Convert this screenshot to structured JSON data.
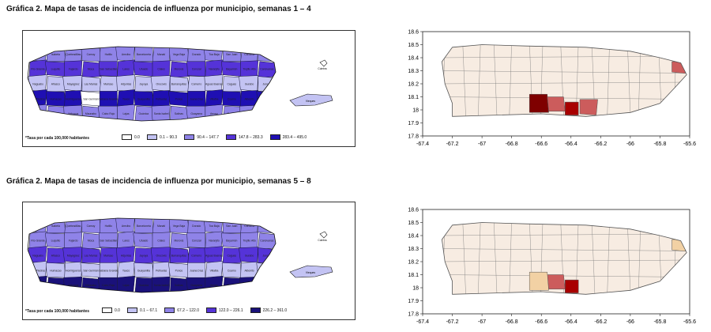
{
  "panels": [
    {
      "caption": "Gráfica 2. Mapa de tasas de incidencia de influenza por municipio, semanas 1 – 4",
      "note": "*Tasa por cada 100,000 habitantes",
      "legend": [
        {
          "label": "0.0",
          "color": "#ffffff"
        },
        {
          "label": "0.1 – 90.3",
          "color": "#c3c3f3"
        },
        {
          "label": "90.4 – 147.7",
          "color": "#8f83e8"
        },
        {
          "label": "147.8 – 283.3",
          "color": "#5533d8"
        },
        {
          "label": "283.4 – 495.0",
          "color": "#1f0fb3"
        }
      ],
      "towns_left": [
        "Aguadilla",
        "Isabela",
        "Quebradillas",
        "Camuy",
        "Hatillo",
        "Arecibo",
        "Barceloneta",
        "Manatí",
        "Vega Baja",
        "Dorado",
        "Toa Baja",
        "San Juan",
        "Carolina",
        "Loíza",
        "Río Grande",
        "Luquillo",
        "Fajardo",
        "Moca",
        "San Sebastián",
        "Lares",
        "Utuado",
        "Ciales",
        "Morovis",
        "Corozal",
        "Naranjito",
        "Bayamón",
        "Trujillo Alto",
        "Canóvanas",
        "Naguabo",
        "Añasco",
        "Mayagüez",
        "Las Marías",
        "Maricao",
        "Adjuntas",
        "Jayuya",
        "Orocovis",
        "Barranquitas",
        "Comerío",
        "Aguas Buenas",
        "Caguas",
        "Gurabo",
        "Juncos",
        "Las Piedras",
        "Humacao",
        "Hormigueros",
        "San Germán",
        "Sabana Grande",
        "Yauco",
        "Guayanilla",
        "Peñuelas",
        "Ponce",
        "Juana Díaz",
        "Villalba",
        "Coamo",
        "Aibonito",
        "Cidra",
        "Cayey",
        "San Lorenzo",
        "Yabucoa",
        "Maunabo",
        "Cabo Rojo",
        "Lajas",
        "Guánica",
        "Santa Isabel",
        "Salinas",
        "Guayama",
        "Arroyo",
        "Patillas",
        "Culebra",
        "Vieques"
      ],
      "towns_right": [
        {
          "name": "Ponce",
          "color": "#7f0000"
        },
        {
          "name": "Juana Díaz",
          "color": "#cc5c5c"
        },
        {
          "name": "Santa Isabel",
          "color": "#a80000"
        },
        {
          "name": "Salinas",
          "color": "#cc5c5c"
        },
        {
          "name": "Fajardo",
          "color": "#cc5c5c"
        }
      ],
      "chart_data": {
        "type": "map",
        "x_ticks": [
          "-67.4",
          "-67.2",
          "-67",
          "-66.8",
          "-66.6",
          "-66.4",
          "-66.2",
          "-66",
          "-65.8",
          "-65.6"
        ],
        "y_ticks": [
          "18.6",
          "18.5",
          "18.4",
          "18.3",
          "18.2",
          "18.1",
          "18",
          "17.9",
          "17.8"
        ],
        "xlim": [
          -67.4,
          -65.6
        ],
        "ylim": [
          17.8,
          18.6
        ]
      }
    },
    {
      "caption": "Gráfica 2. Mapa de tasas de incidencia de influenza por municipio, semanas 5 – 8",
      "note": "*Tasa por cada 100,000 habitantes",
      "legend": [
        {
          "label": "0.0",
          "color": "#ffffff"
        },
        {
          "label": "0.1 – 67.1",
          "color": "#c3c3f3"
        },
        {
          "label": "67.2 – 122.0",
          "color": "#8f83e8"
        },
        {
          "label": "122.0 – 226.1",
          "color": "#5533d8"
        },
        {
          "label": "226.2 – 361.0",
          "color": "#1a117a"
        }
      ],
      "towns_left": [
        "Aguadilla",
        "Isabela",
        "Quebradillas",
        "Camuy",
        "Hatillo",
        "Arecibo",
        "Barceloneta",
        "Manatí",
        "Vega Baja",
        "Dorado",
        "Toa Baja",
        "San Juan",
        "Carolina",
        "Loíza",
        "Río Grande",
        "Luquillo",
        "Fajardo",
        "Moca",
        "San Sebastián",
        "Lares",
        "Utuado",
        "Ciales",
        "Morovis",
        "Corozal",
        "Naranjito",
        "Bayamón",
        "Trujillo Alto",
        "Canóvanas",
        "Naguabo",
        "Añasco",
        "Mayagüez",
        "Las Marías",
        "Maricao",
        "Adjuntas",
        "Jayuya",
        "Orocovis",
        "Barranquitas",
        "Comerío",
        "Aguas Buenas",
        "Caguas",
        "Gurabo",
        "Juncos",
        "Las Piedras",
        "Humacao",
        "Hormigueros",
        "San Germán",
        "Sabana Grande",
        "Yauco",
        "Guayanilla",
        "Peñuelas",
        "Ponce",
        "Juana Díaz",
        "Villalba",
        "Coamo",
        "Aibonito",
        "Cidra",
        "Cayey",
        "San Lorenzo",
        "Yabucoa",
        "Maunabo",
        "Cabo Rojo",
        "Lajas",
        "Guánica",
        "Santa Isabel",
        "Salinas",
        "Guayama",
        "Arroyo",
        "Patillas",
        "Culebra",
        "Vieques"
      ],
      "towns_right": [
        {
          "name": "Juana Díaz",
          "color": "#cc5c5c"
        },
        {
          "name": "Santa Isabel",
          "color": "#a80000"
        },
        {
          "name": "Ponce",
          "color": "#f2d1a4"
        },
        {
          "name": "Fajardo",
          "color": "#f2d1a4"
        }
      ],
      "chart_data": {
        "type": "map",
        "x_ticks": [
          "-67.4",
          "-67.2",
          "-67",
          "-66.8",
          "-66.6",
          "-66.4",
          "-66.2",
          "-66",
          "-65.8",
          "-65.6"
        ],
        "y_ticks": [
          "18.6",
          "18.5",
          "18.4",
          "18.3",
          "18.2",
          "18.1",
          "18",
          "17.9",
          "17.8"
        ],
        "xlim": [
          -67.4,
          -65.6
        ],
        "ylim": [
          17.8,
          18.6
        ]
      }
    }
  ],
  "colors": {
    "base_fill": "#f7ece2",
    "outline": "#555555"
  }
}
